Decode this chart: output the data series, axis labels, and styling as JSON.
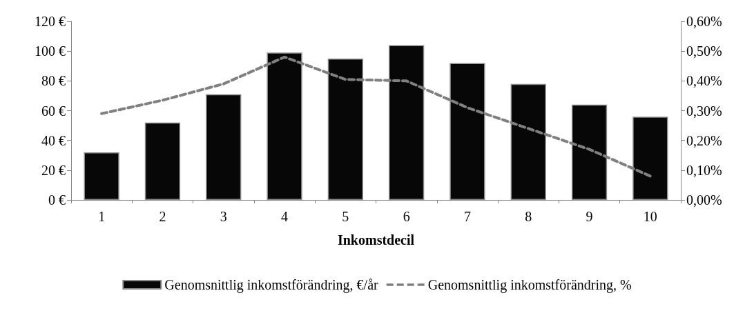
{
  "chart_data": {
    "type": "bar",
    "xlabel": "Inkomstdecil",
    "categories": [
      "1",
      "2",
      "3",
      "4",
      "5",
      "6",
      "7",
      "8",
      "9",
      "10"
    ],
    "series": [
      {
        "name": "Genomsnittlig inkomstförändring, €/år",
        "color": "#070707",
        "values": [
          32,
          52,
          71,
          99,
          95,
          104,
          92,
          78,
          64,
          56
        ]
      },
      {
        "name": "Genomsnittlig inkomstförändring, %",
        "type": "line",
        "axis": "y2",
        "color": "#808080",
        "line_style": "dashed",
        "values": [
          0.29,
          0.335,
          0.39,
          0.48,
          0.405,
          0.4,
          0.31,
          0.24,
          0.17,
          0.08
        ]
      }
    ],
    "ylim": [
      0,
      120
    ],
    "yticks": [
      {
        "value": 0,
        "label": "0 €"
      },
      {
        "value": 20,
        "label": "20 €"
      },
      {
        "value": 40,
        "label": "40 €"
      },
      {
        "value": 60,
        "label": "60 €"
      },
      {
        "value": 80,
        "label": "80 €"
      },
      {
        "value": 100,
        "label": "100 €"
      },
      {
        "value": 120,
        "label": "120 €"
      }
    ],
    "y2lim": [
      0,
      0.6
    ],
    "y2ticks": [
      {
        "value": 0,
        "label": "0,00%"
      },
      {
        "value": 0.1,
        "label": "0,10%"
      },
      {
        "value": 0.2,
        "label": "0,20%"
      },
      {
        "value": 0.3,
        "label": "0,30%"
      },
      {
        "value": 0.4,
        "label": "0,40%"
      },
      {
        "value": 0.5,
        "label": "0,50%"
      },
      {
        "value": 0.6,
        "label": "0,60%"
      }
    ],
    "grid": false,
    "legend": "bottom",
    "marker": "none"
  }
}
